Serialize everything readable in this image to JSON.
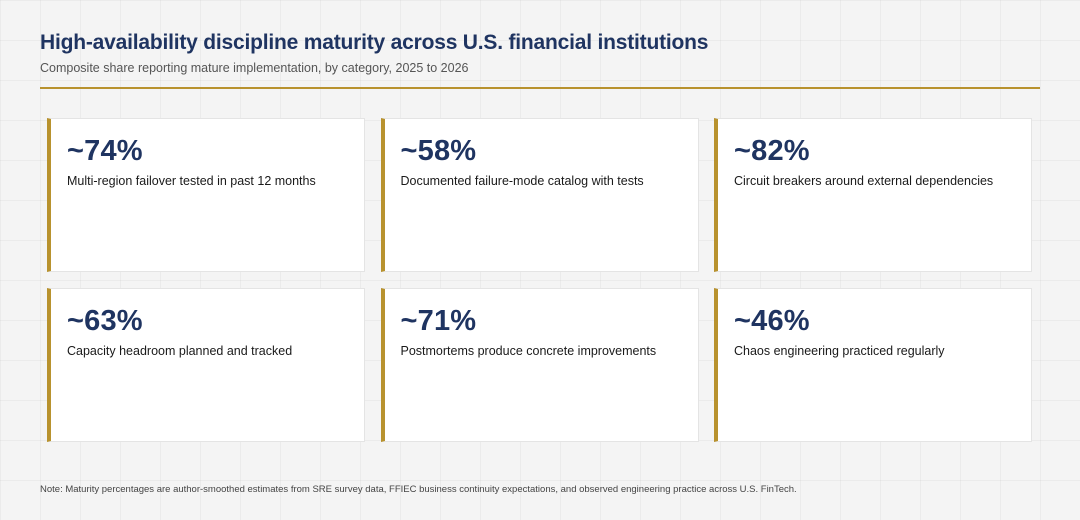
{
  "chart_data": {
    "type": "table",
    "title": "High-availability discipline maturity across U.S. financial institutions",
    "subtitle": "Composite share reporting mature implementation, by category, 2025 to 2026",
    "accent_color": "#b8922e",
    "value_color": "#1f3461",
    "metrics": [
      {
        "display": "~74%",
        "value": 74,
        "label": "Multi-region failover tested in past 12 months"
      },
      {
        "display": "~58%",
        "value": 58,
        "label": "Documented failure-mode catalog with tests"
      },
      {
        "display": "~82%",
        "value": 82,
        "label": "Circuit breakers around external dependencies"
      },
      {
        "display": "~63%",
        "value": 63,
        "label": "Capacity headroom planned and tracked"
      },
      {
        "display": "~71%",
        "value": 71,
        "label": "Postmortems produce concrete improvements"
      },
      {
        "display": "~46%",
        "value": 46,
        "label": "Chaos engineering practiced regularly"
      }
    ],
    "note": "Note: Maturity percentages are author-smoothed estimates from SRE survey data, FFIEC business continuity expectations, and observed engineering practice across U.S. FinTech."
  }
}
